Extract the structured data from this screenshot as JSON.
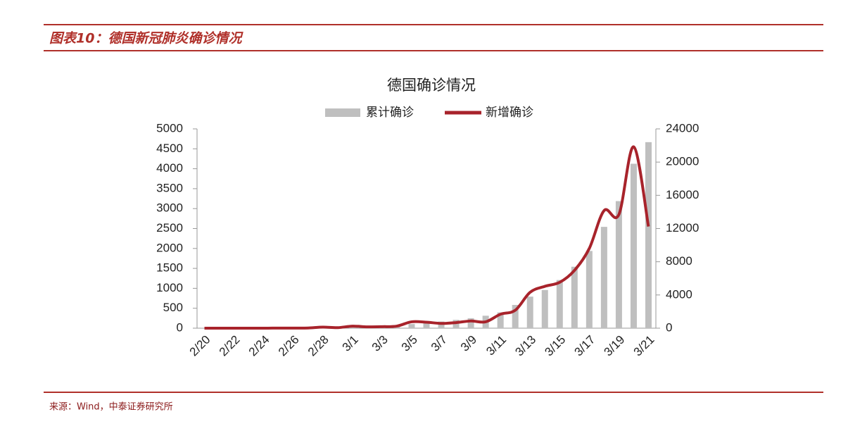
{
  "header": {
    "title": "图表10：德国新冠肺炎确诊情况"
  },
  "chart_data": {
    "type": "combo",
    "title": "德国确诊情况",
    "categories": [
      "2/20",
      null,
      "2/22",
      null,
      "2/24",
      null,
      "2/26",
      null,
      "2/28",
      null,
      "3/1",
      null,
      "3/3",
      null,
      "3/5",
      null,
      "3/7",
      null,
      "3/9",
      null,
      "3/11",
      null,
      "3/13",
      null,
      "3/15",
      null,
      "3/17",
      null,
      "3/19",
      null,
      "3/21"
    ],
    "series": [
      {
        "name": "累计确诊",
        "type": "bar",
        "axis": "y2",
        "color": "#bfbfbf",
        "values": [
          16,
          16,
          16,
          16,
          16,
          16,
          20,
          30,
          50,
          70,
          120,
          150,
          200,
          300,
          500,
          640,
          800,
          1000,
          1200,
          1500,
          1900,
          2800,
          3800,
          4600,
          5800,
          7400,
          9300,
          12200,
          15300,
          19800,
          22400
        ]
      },
      {
        "name": "新增确诊",
        "type": "line",
        "axis": "y",
        "color": "#a8232b",
        "values": [
          0,
          0,
          0,
          0,
          0,
          2,
          3,
          5,
          27,
          13,
          51,
          33,
          38,
          52,
          160,
          150,
          120,
          140,
          180,
          160,
          350,
          450,
          900,
          1050,
          1150,
          1450,
          2000,
          2950,
          2850,
          4550,
          2550
        ]
      }
    ],
    "ylim": [
      0,
      5000
    ],
    "yticks": [
      0,
      500,
      1000,
      1500,
      2000,
      2500,
      3000,
      3500,
      4000,
      4500,
      5000
    ],
    "y2lim": [
      0,
      24000
    ],
    "y2ticks": [
      0,
      4000,
      8000,
      12000,
      16000,
      20000,
      24000
    ]
  },
  "footer": {
    "source": "来源：Wind，中泰证券研究所"
  }
}
